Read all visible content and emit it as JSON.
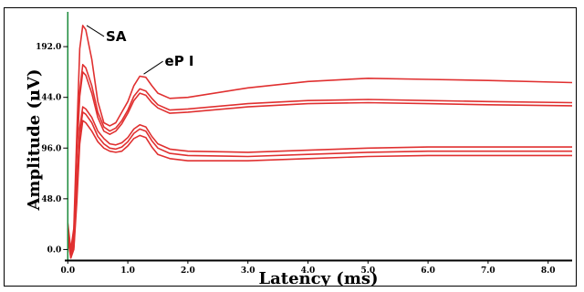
{
  "chart_data": {
    "type": "line",
    "xlabel": "Latency (ms)",
    "ylabel": "Amplitude (uV)",
    "xlim": [
      -0.05,
      8.4
    ],
    "ylim": [
      -10,
      218
    ],
    "x_ticks": [
      "0.0",
      "1.0",
      "2.0",
      "3.0",
      "4.0",
      "5.0",
      "6.0",
      "7.0",
      "8.0"
    ],
    "y_ticks": [
      "0.0",
      "48.0",
      "96.0",
      "144.0",
      "192.0"
    ],
    "colors": {
      "trace": "#e03030",
      "y_axis": "#1a8a3a",
      "axes": "#000000"
    },
    "annotations": [
      {
        "text": "SA",
        "x": 0.3,
        "y": 212
      },
      {
        "text": "eP I",
        "x": 1.25,
        "y": 166
      }
    ],
    "series": [
      {
        "x": [
          0.0,
          0.05,
          0.1,
          0.15,
          0.2,
          0.25,
          0.3,
          0.4,
          0.5,
          0.6,
          0.7,
          0.8,
          0.9,
          1.0,
          1.1,
          1.2,
          1.3,
          1.4,
          1.5,
          1.7,
          2.0,
          3.0,
          4.0,
          5.0,
          6.0,
          7.0,
          8.4
        ],
        "y": [
          25,
          0,
          20,
          110,
          190,
          212,
          208,
          180,
          140,
          120,
          117,
          120,
          130,
          140,
          155,
          164,
          163,
          155,
          148,
          143,
          144,
          153,
          159,
          162,
          161,
          160,
          158
        ]
      },
      {
        "x": [
          0.0,
          0.05,
          0.1,
          0.15,
          0.2,
          0.25,
          0.3,
          0.4,
          0.5,
          0.6,
          0.7,
          0.8,
          0.9,
          1.0,
          1.1,
          1.2,
          1.3,
          1.4,
          1.5,
          1.7,
          2.0,
          3.0,
          4.0,
          5.0,
          6.0,
          7.0,
          8.4
        ],
        "y": [
          20,
          -5,
          15,
          95,
          150,
          175,
          172,
          155,
          130,
          116,
          112,
          115,
          122,
          132,
          145,
          152,
          150,
          143,
          137,
          132,
          133,
          138,
          141,
          142,
          141,
          140,
          139
        ]
      },
      {
        "x": [
          0.0,
          0.05,
          0.1,
          0.15,
          0.2,
          0.25,
          0.3,
          0.4,
          0.5,
          0.6,
          0.7,
          0.8,
          0.9,
          1.0,
          1.1,
          1.2,
          1.3,
          1.4,
          1.5,
          1.7,
          2.0,
          3.0,
          4.0,
          5.0,
          6.0,
          7.0,
          8.4
        ],
        "y": [
          18,
          -3,
          12,
          90,
          145,
          168,
          165,
          148,
          125,
          112,
          109,
          112,
          119,
          129,
          141,
          148,
          146,
          139,
          134,
          129,
          130,
          135,
          138,
          139,
          138,
          137,
          136
        ]
      },
      {
        "x": [
          0.0,
          0.05,
          0.1,
          0.15,
          0.2,
          0.25,
          0.3,
          0.4,
          0.5,
          0.6,
          0.7,
          0.8,
          0.9,
          1.0,
          1.1,
          1.2,
          1.3,
          1.4,
          1.5,
          1.7,
          2.0,
          3.0,
          4.0,
          5.0,
          6.0,
          7.0,
          8.4
        ],
        "y": [
          15,
          -8,
          5,
          60,
          115,
          135,
          133,
          125,
          112,
          105,
          100,
          99,
          101,
          106,
          114,
          118,
          116,
          107,
          100,
          95,
          93,
          92,
          94,
          96,
          97,
          97,
          97
        ]
      },
      {
        "x": [
          0.0,
          0.05,
          0.1,
          0.15,
          0.2,
          0.25,
          0.3,
          0.4,
          0.5,
          0.6,
          0.7,
          0.8,
          0.9,
          1.0,
          1.1,
          1.2,
          1.3,
          1.4,
          1.5,
          1.7,
          2.0,
          3.0,
          4.0,
          5.0,
          6.0,
          7.0,
          8.4
        ],
        "y": [
          12,
          -5,
          2,
          55,
          110,
          130,
          128,
          120,
          107,
          100,
          96,
          95,
          97,
          102,
          110,
          114,
          112,
          103,
          96,
          91,
          89,
          88,
          90,
          92,
          93,
          93,
          93
        ]
      },
      {
        "x": [
          0.0,
          0.05,
          0.1,
          0.15,
          0.2,
          0.25,
          0.3,
          0.4,
          0.5,
          0.6,
          0.7,
          0.8,
          0.9,
          1.0,
          1.1,
          1.2,
          1.3,
          1.4,
          1.5,
          1.7,
          2.0,
          3.0,
          4.0,
          5.0,
          6.0,
          7.0,
          8.4
        ],
        "y": [
          10,
          -8,
          0,
          45,
          100,
          122,
          120,
          112,
          102,
          96,
          93,
          92,
          93,
          98,
          105,
          108,
          106,
          97,
          90,
          86,
          84,
          84,
          86,
          88,
          89,
          89,
          89
        ]
      }
    ]
  }
}
